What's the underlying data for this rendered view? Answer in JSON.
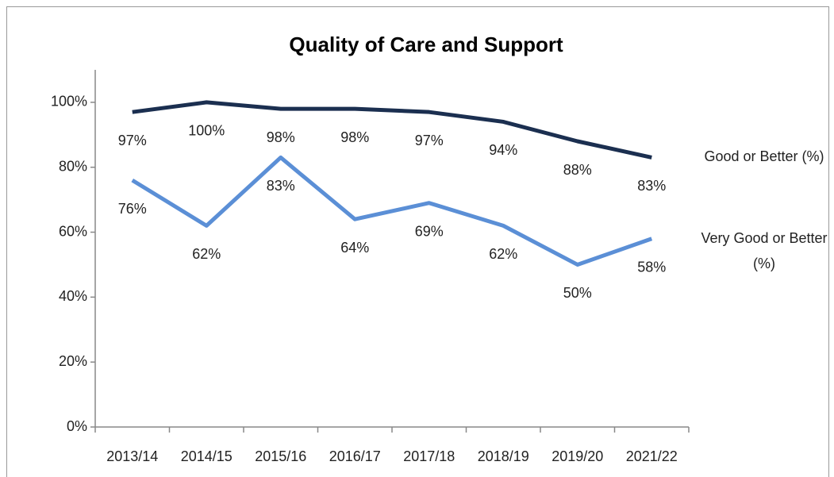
{
  "chart_data": {
    "type": "line",
    "title": "Quality of Care and Support",
    "categories": [
      "2013/14",
      "2014/15",
      "2015/16",
      "2016/17",
      "2017/18",
      "2018/19",
      "2019/20",
      "2021/22"
    ],
    "series": [
      {
        "name": "Good or Better (%)",
        "color": "#1b2f50",
        "values": [
          97,
          100,
          98,
          98,
          97,
          94,
          88,
          83
        ],
        "value_labels": [
          "97%",
          "100%",
          "98%",
          "98%",
          "97%",
          "94%",
          "88%",
          "83%"
        ]
      },
      {
        "name": "Very Good or Better (%)",
        "color": "#5b8fd6",
        "values": [
          76,
          62,
          83,
          64,
          69,
          62,
          50,
          58
        ],
        "value_labels": [
          "76%",
          "62%",
          "83%",
          "64%",
          "69%",
          "62%",
          "50%",
          "58%"
        ]
      }
    ],
    "ylim": [
      0,
      110
    ],
    "yticks": [
      {
        "value": 0,
        "label": "0%"
      },
      {
        "value": 20,
        "label": "20%"
      },
      {
        "value": 40,
        "label": "40%"
      },
      {
        "value": 60,
        "label": "60%"
      },
      {
        "value": 80,
        "label": "80%"
      },
      {
        "value": 100,
        "label": "100%"
      }
    ],
    "grid": false,
    "legend": "right"
  }
}
